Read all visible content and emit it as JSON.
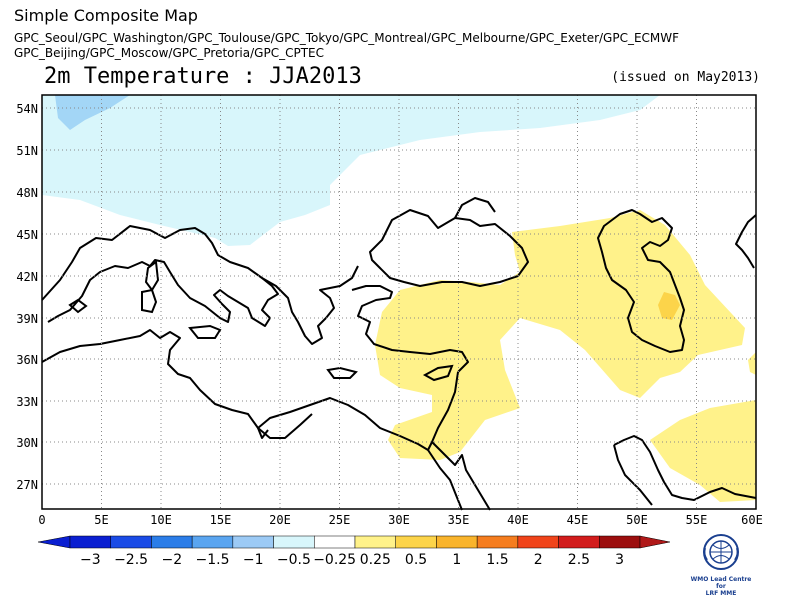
{
  "header": {
    "title": "Simple Composite Map",
    "models_line1": "GPC_Seoul/GPC_Washington/GPC_Toulouse/GPC_Tokyo/GPC_Montreal/GPC_Melbourne/GPC_Exeter/GPC_ECMWF",
    "models_line2": "GPC_Beijing/GPC_Moscow/GPC_Pretoria/GPC_CPTEC",
    "variable": "2m Temperature : JJA2013",
    "issued": "(issued on May2013)"
  },
  "map": {
    "lon_range": [
      0,
      60
    ],
    "lat_range": [
      25.5,
      55
    ],
    "lat_ticks": [
      "54N",
      "51N",
      "48N",
      "45N",
      "42N",
      "39N",
      "36N",
      "33N",
      "30N",
      "27N"
    ],
    "lon_ticks": [
      "0",
      "5E",
      "10E",
      "15E",
      "20E",
      "25E",
      "30E",
      "35E",
      "40E",
      "45E",
      "50E",
      "55E",
      "60E"
    ],
    "grid": true
  },
  "colorbar": {
    "labels": [
      "−3",
      "−2.5",
      "−2",
      "−1.5",
      "−1",
      "−0.5",
      "−0.25",
      "0.25",
      "0.5",
      "1",
      "1.5",
      "2",
      "2.5",
      "3"
    ],
    "colors": [
      "#0a1fd1",
      "#1a4be6",
      "#2b7de8",
      "#5aa5f0",
      "#9ccaf5",
      "#d8f6fb",
      "#ffffff",
      "#fff28a",
      "#fcd44a",
      "#f9b42c",
      "#f57d1f",
      "#f0441a",
      "#d21c1c",
      "#9c0e0e"
    ],
    "low_end_color": "#0a1fd1",
    "high_end_color": "#b01919"
  },
  "logo": {
    "text_line1": "WMO Lead Centre for",
    "text_line2": "LRF MME"
  },
  "colors": {
    "blue_light": "#d8f6fb",
    "blue_mid": "#a3d6f6",
    "yellow": "#fff28a",
    "orange": "#fcd44a"
  }
}
